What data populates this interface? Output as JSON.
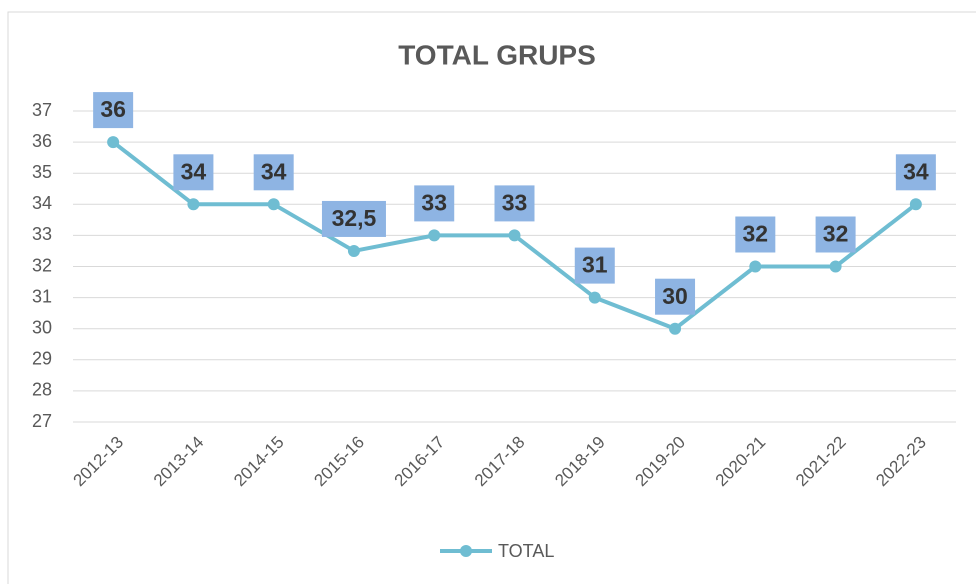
{
  "chart_data": {
    "type": "line",
    "title": "TOTAL GRUPS",
    "categories": [
      "2012-13",
      "2013-14",
      "2014-15",
      "2015-16",
      "2016-17",
      "2017-18",
      "2018-19",
      "2019-20",
      "2020-21",
      "2021-22",
      "2022-23"
    ],
    "series": [
      {
        "name": "TOTAL",
        "color": "#6fbdd2",
        "values": [
          36,
          34,
          34,
          32.5,
          33,
          33,
          31,
          30,
          32,
          32,
          34
        ],
        "value_labels": [
          "36",
          "34",
          "34",
          "32,5",
          "33",
          "33",
          "31",
          "30",
          "32",
          "32",
          "34"
        ]
      }
    ],
    "ylim": [
      27,
      37
    ],
    "yticks": [
      27,
      28,
      29,
      30,
      31,
      32,
      33,
      34,
      35,
      36,
      37
    ],
    "grid": true,
    "legend": "bottom"
  }
}
